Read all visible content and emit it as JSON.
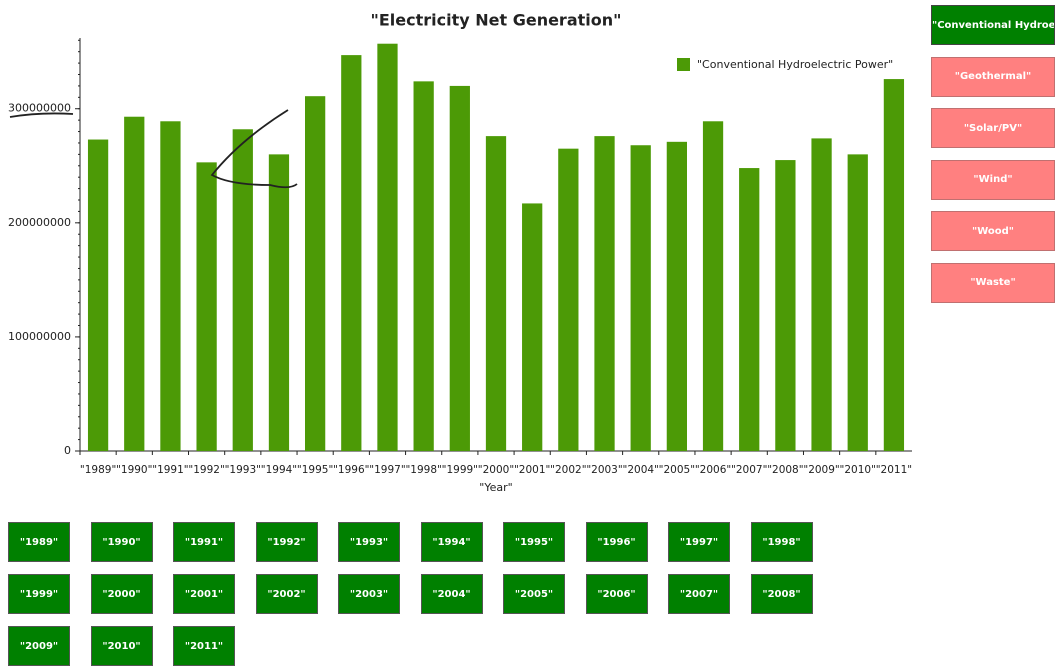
{
  "chart_data": {
    "type": "bar",
    "title": "\"Electricity Net Generation\"",
    "x_label": "\"Year\"",
    "categories": [
      "\"1989\"",
      "\"1990\"",
      "\"1991\"",
      "\"1992\"",
      "\"1993\"",
      "\"1994\"",
      "\"1995\"",
      "\"1996\"",
      "\"1997\"",
      "\"1998\"",
      "\"1999\"",
      "\"2000\"",
      "\"2001\"",
      "\"2002\"",
      "\"2003\"",
      "\"2004\"",
      "\"2005\"",
      "\"2006\"",
      "\"2007\"",
      "\"2008\"",
      "\"2009\"",
      "\"2010\"",
      "\"2011\""
    ],
    "series": [
      {
        "name": "\"Conventional Hydroelectric Power\"",
        "color": "#4c9a06",
        "values": [
          273000000,
          293000000,
          289000000,
          253000000,
          282000000,
          260000000,
          311000000,
          347000000,
          357000000,
          324000000,
          320000000,
          276000000,
          217000000,
          265000000,
          276000000,
          268000000,
          271000000,
          289000000,
          248000000,
          255000000,
          274000000,
          260000000,
          326000000
        ]
      }
    ],
    "ylim": [
      0,
      362000000
    ],
    "yticks": [
      0,
      100000000,
      200000000,
      300000000
    ],
    "legend": "top-right"
  },
  "series_buttons": [
    {
      "label": "\"Conventional Hydroelectric Power\"",
      "selected": true
    },
    {
      "label": "\"Geothermal\"",
      "selected": false
    },
    {
      "label": "\"Solar/PV\"",
      "selected": false
    },
    {
      "label": "\"Wind\"",
      "selected": false
    },
    {
      "label": "\"Wood\"",
      "selected": false
    },
    {
      "label": "\"Waste\"",
      "selected": false
    }
  ],
  "year_buttons": [
    "\"1989\"",
    "\"1990\"",
    "\"1991\"",
    "\"1992\"",
    "\"1993\"",
    "\"1994\"",
    "\"1995\"",
    "\"1996\"",
    "\"1997\"",
    "\"1998\"",
    "\"1999\"",
    "\"2000\"",
    "\"2001\"",
    "\"2002\"",
    "\"2003\"",
    "\"2004\"",
    "\"2005\"",
    "\"2006\"",
    "\"2007\"",
    "\"2008\"",
    "\"2009\"",
    "\"2010\"",
    "\"2011\""
  ]
}
